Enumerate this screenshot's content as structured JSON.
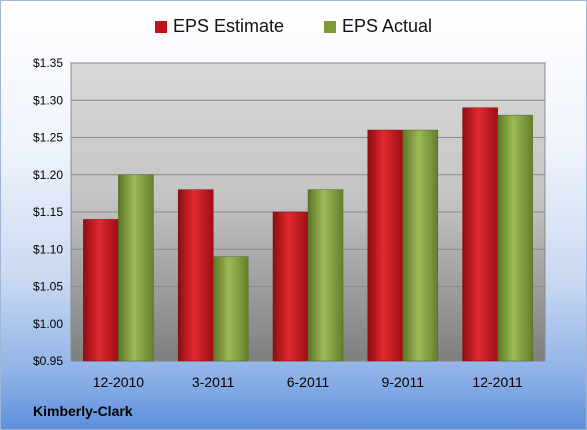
{
  "chart_data": {
    "type": "bar",
    "categories": [
      "12-2010",
      "3-2011",
      "6-2011",
      "9-2011",
      "12-2011"
    ],
    "series": [
      {
        "name": "EPS Estimate",
        "color": "#c0141d",
        "values": [
          1.14,
          1.18,
          1.15,
          1.26,
          1.29
        ]
      },
      {
        "name": "EPS Actual",
        "color": "#7c9a3a",
        "values": [
          1.2,
          1.09,
          1.18,
          1.26,
          1.28
        ]
      }
    ],
    "ylim": [
      0.95,
      1.35
    ],
    "yticks": [
      "$0.95",
      "$1.00",
      "$1.05",
      "$1.10",
      "$1.15",
      "$1.20",
      "$1.25",
      "$1.30",
      "$1.35"
    ],
    "grid": true,
    "legend": "top-center"
  },
  "company": "Kimberly-Clark"
}
